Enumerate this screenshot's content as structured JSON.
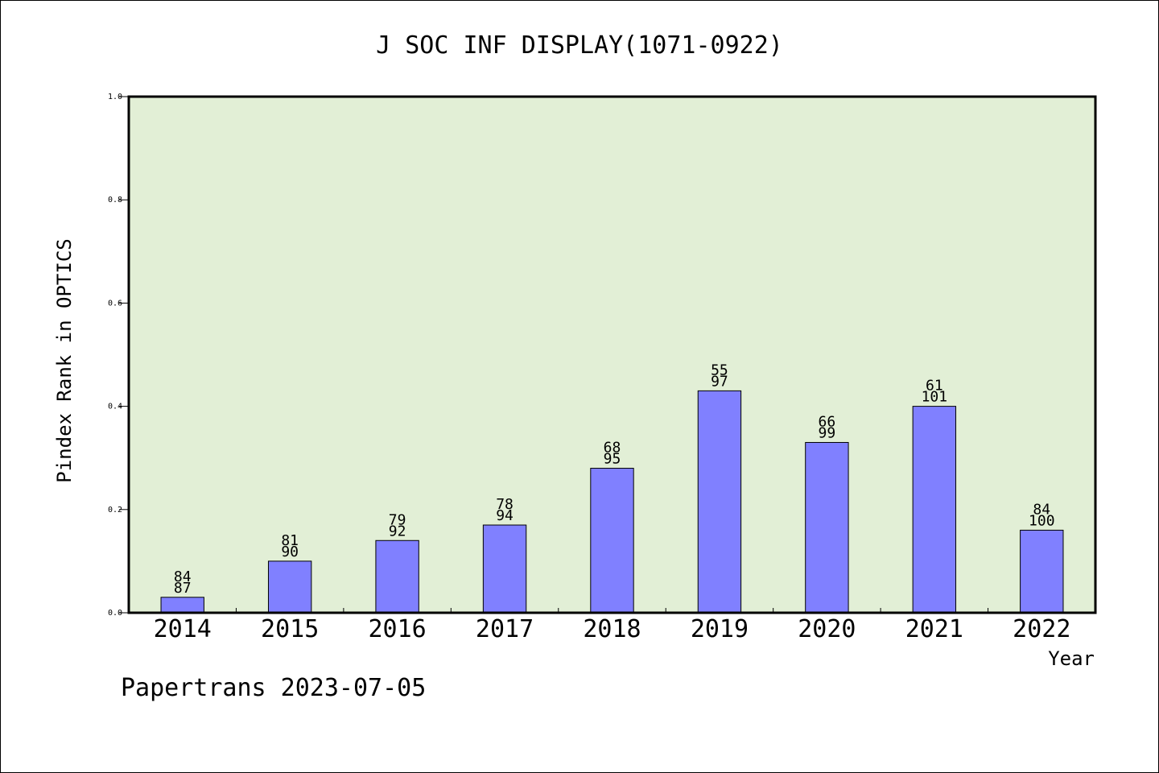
{
  "chart_data": {
    "type": "bar",
    "title": "J SOC INF DISPLAY(1071-0922)",
    "xlabel": "Year",
    "ylabel": "Pindex Rank in OPTICS",
    "categories": [
      "2014",
      "2015",
      "2016",
      "2017",
      "2018",
      "2019",
      "2020",
      "2021",
      "2022"
    ],
    "values": [
      0.03,
      0.1,
      0.14,
      0.17,
      0.28,
      0.43,
      0.33,
      0.4,
      0.16
    ],
    "labels_top": [
      "84",
      "81",
      "79",
      "78",
      "68",
      "55",
      "66",
      "61",
      "84"
    ],
    "labels_bottom": [
      "87",
      "90",
      "92",
      "94",
      "95",
      "97",
      "99",
      "101",
      "100"
    ],
    "ylim": [
      0,
      1.0
    ],
    "yticks": [
      "0.0",
      "0.2",
      "0.4",
      "0.6",
      "0.8",
      "1.0"
    ],
    "grid": false,
    "colors": {
      "bar": "#8080ff",
      "plot_background": "#e2efd6",
      "axis": "#000000"
    }
  },
  "footer": {
    "text": "Papertrans 2023-07-05"
  }
}
